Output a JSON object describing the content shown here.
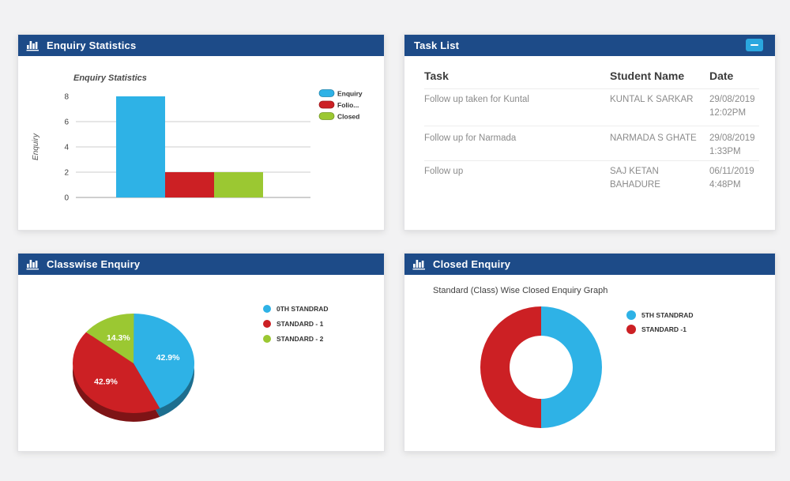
{
  "page": {
    "background": "#f2f2f3"
  },
  "colors": {
    "header_navy": "#1d4b88",
    "accent_blue": "#2eb2e6",
    "accent_red": "#cc2024",
    "accent_green": "#9bc832",
    "minimize_blue": "#2aa7df"
  },
  "panels": {
    "enquiry_statistics": {
      "title": "Enquiry Statistics",
      "icon": "bar-chart-icon"
    },
    "task_list": {
      "title": "Task List",
      "columns": {
        "task": "Task",
        "student": "Student Name",
        "date": "Date"
      },
      "rows": [
        {
          "task": "Follow up taken for Kuntal",
          "student": "KUNTAL K SARKAR",
          "date": "29/08/2019",
          "time": "12:02PM"
        },
        {
          "task": "Follow up for Narmada",
          "student": "NARMADA S GHATE",
          "date": "29/08/2019",
          "time": "1:33PM"
        },
        {
          "task": "Follow up",
          "student": "SAJ KETAN BAHADURE",
          "date": "06/11/2019",
          "time": "4:48PM"
        }
      ]
    },
    "classwise_enquiry": {
      "title": "Classwise Enquiry",
      "icon": "bar-chart-icon"
    },
    "closed_enquiry": {
      "title": "Closed Enquiry",
      "icon": "bar-chart-icon"
    }
  },
  "chart_data": [
    {
      "id": "enquiry-statistics-bar",
      "type": "bar",
      "title": "Enquiry Statistics",
      "xlabel": "",
      "ylabel": "Enquiry",
      "ylim": [
        0,
        8
      ],
      "yticks": [
        0,
        2,
        4,
        6,
        8
      ],
      "grid": true,
      "legend_position": "right",
      "series": [
        {
          "name": "Enquiry",
          "value": 8,
          "color": "#2eb2e6"
        },
        {
          "name": "Folio...",
          "value": 2,
          "color": "#cc2024"
        },
        {
          "name": "Closed",
          "value": 2,
          "color": "#9bc832"
        }
      ]
    },
    {
      "id": "classwise-enquiry-pie",
      "type": "pie",
      "is3d": true,
      "legend_position": "right",
      "slices": [
        {
          "label": "0TH STANDRAD",
          "pct": 42.9,
          "display": "42.9%",
          "color": "#2eb2e6"
        },
        {
          "label": "STANDARD - 1",
          "pct": 42.9,
          "display": "42.9%",
          "color": "#cc2024"
        },
        {
          "label": "STANDARD - 2",
          "pct": 14.3,
          "display": "14.3%",
          "color": "#9bc832"
        }
      ]
    },
    {
      "id": "closed-enquiry-donut",
      "type": "pie",
      "subtype": "donut",
      "title": "Standard (Class) Wise Closed Enquiry Graph",
      "legend_position": "right",
      "slices": [
        {
          "label": "5TH STANDRAD",
          "pct": 50,
          "color": "#2eb2e6"
        },
        {
          "label": "STANDARD -1",
          "pct": 50,
          "color": "#cc2024"
        }
      ]
    }
  ]
}
